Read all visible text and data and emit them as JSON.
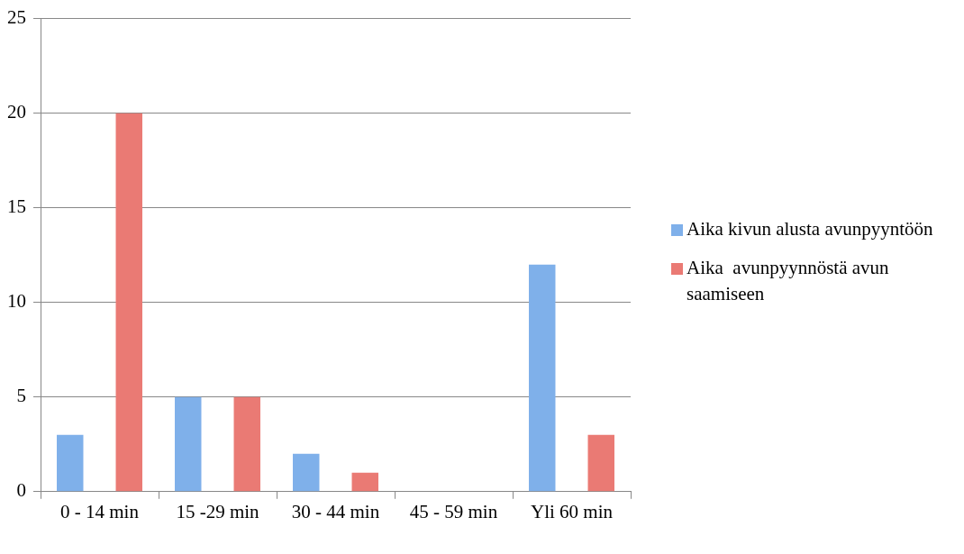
{
  "chart_data": {
    "type": "bar",
    "categories": [
      "0 - 14 min",
      "15 -29 min",
      "30 - 44 min",
      "45 - 59 min",
      "Yli 60 min"
    ],
    "series": [
      {
        "name": "Aika kivun alusta avunpyyntöön",
        "color": "#7fb0ea",
        "values": [
          3,
          5,
          2,
          0,
          12
        ]
      },
      {
        "name": "Aika  avunpyynnöstä avun saamiseen",
        "color": "#ea7a74",
        "values": [
          20,
          5,
          1,
          0,
          3
        ]
      }
    ],
    "ylim": [
      0,
      25
    ],
    "yticks": [
      0,
      5,
      10,
      15,
      20,
      25
    ],
    "grid": "y",
    "legend": "right"
  }
}
